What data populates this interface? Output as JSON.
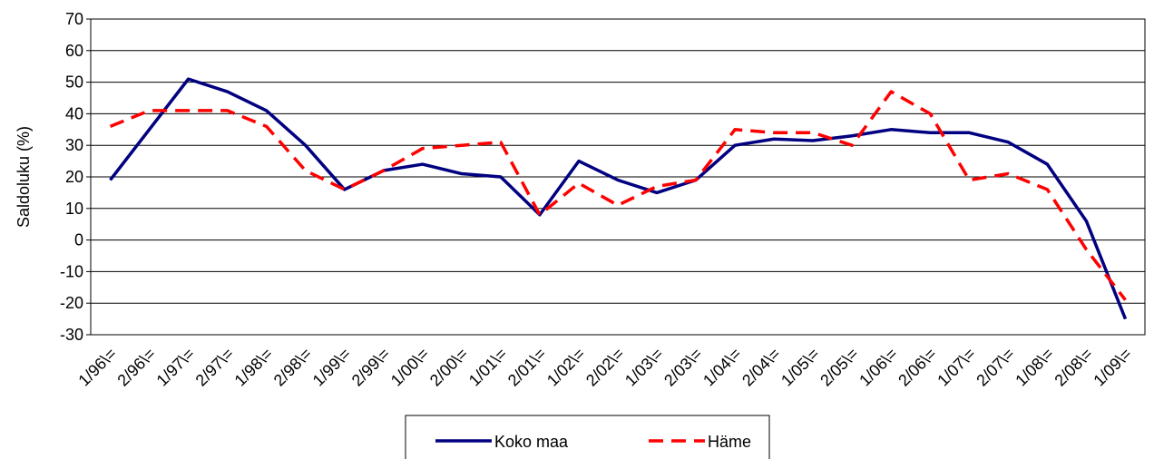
{
  "chart_data": {
    "type": "line",
    "y_label": "Saldoluku (%)",
    "categories": [
      "1/96\\=",
      "2/96\\=",
      "1/97\\=",
      "2/97\\=",
      "1/98\\=",
      "2/98\\=",
      "1/99\\=",
      "2/99\\=",
      "1/00\\=",
      "2/00\\=",
      "1/01\\=",
      "2/01\\=",
      "1/02\\=",
      "2/02\\=",
      "1/03\\=",
      "2/03\\=",
      "1/04\\=",
      "2/04\\=",
      "1/05\\=",
      "2/05\\=",
      "1/06\\=",
      "2/06\\=",
      "1/07\\=",
      "2/07\\=",
      "1/08\\=",
      "2/08\\=",
      "1/09\\="
    ],
    "series": [
      {
        "name": "Koko maa",
        "color": "#000080",
        "dash": false,
        "values": [
          19,
          35,
          51,
          47,
          41,
          30,
          16,
          22,
          24,
          21,
          20,
          8,
          25,
          19,
          15,
          19,
          30,
          32,
          31.5,
          33,
          35,
          34,
          34,
          31,
          24,
          6,
          -25
        ]
      },
      {
        "name": "Häme",
        "color": "#ff0000",
        "dash": true,
        "values": [
          36,
          41,
          41,
          41,
          36,
          22,
          16,
          22,
          29,
          30,
          31,
          8,
          18,
          11,
          17,
          19,
          35,
          34,
          34,
          30,
          47,
          40,
          19,
          21,
          16,
          -3,
          -19
        ]
      }
    ],
    "ylim": [
      -30,
      70
    ],
    "yticks": [
      -30,
      -20,
      -10,
      0,
      10,
      20,
      30,
      40,
      50,
      60,
      70
    ],
    "grid": true,
    "legend": "bottom"
  }
}
